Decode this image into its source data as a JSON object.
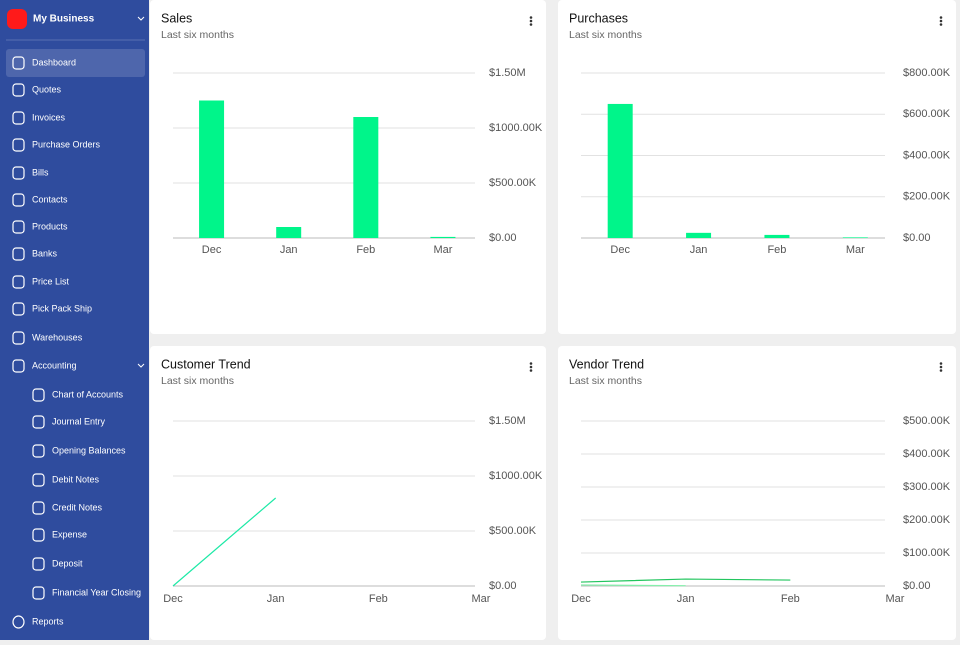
{
  "sidebar": {
    "brand": "My Business",
    "items": [
      "Dashboard",
      "Quotes",
      "Invoices",
      "Purchase Orders",
      "Bills",
      "Contacts",
      "Products",
      "Banks",
      "Price List",
      "Pick Pack Ship",
      "Warehouses",
      "Accounting"
    ],
    "sub_items": [
      "Chart of Accounts",
      "Journal Entry",
      "Opening Balances",
      "Debit Notes",
      "Credit Notes",
      "Expense",
      "Deposit",
      "Financial Year Closing"
    ],
    "last_item": "Reports"
  },
  "charts": [
    {
      "type": "bar",
      "title": "Sales",
      "subtitle": "Last six months",
      "categories": [
        "Dec",
        "Jan",
        "Feb",
        "Mar"
      ],
      "values": [
        1250000,
        100000,
        1100000,
        10000
      ],
      "color": "#00f58a",
      "ylim": [
        0,
        1500000
      ],
      "yticks": [
        {
          "value": 0,
          "label": "$0.00"
        },
        {
          "value": 500000,
          "label": "$500.00K"
        },
        {
          "value": 1000000,
          "label": "$1000.00K"
        },
        {
          "value": 1500000,
          "label": "$1.50M"
        }
      ],
      "grid": true
    },
    {
      "type": "bar",
      "title": "Purchases",
      "subtitle": "Last six months",
      "categories": [
        "Dec",
        "Jan",
        "Feb",
        "Mar"
      ],
      "values": [
        650000,
        25000,
        15000,
        3000
      ],
      "color": "#00f58a",
      "ylim": [
        0,
        800000
      ],
      "yticks": [
        {
          "value": 0,
          "label": "$0.00"
        },
        {
          "value": 200000,
          "label": "$200.00K"
        },
        {
          "value": 400000,
          "label": "$400.00K"
        },
        {
          "value": 600000,
          "label": "$600.00K"
        },
        {
          "value": 800000,
          "label": "$800.00K"
        }
      ],
      "grid": true
    },
    {
      "type": "line",
      "title": "Customer Trend",
      "subtitle": "Last six months",
      "categories": [
        "Dec",
        "Jan",
        "Feb",
        "Mar"
      ],
      "series": [
        {
          "color": "#1de9a6",
          "values": [
            0,
            800000,
            null,
            null
          ]
        }
      ],
      "ylim": [
        0,
        1500000
      ],
      "yticks": [
        {
          "value": 0,
          "label": "$0.00"
        },
        {
          "value": 500000,
          "label": "$500.00K"
        },
        {
          "value": 1000000,
          "label": "$1000.00K"
        },
        {
          "value": 1500000,
          "label": "$1.50M"
        }
      ],
      "grid": true
    },
    {
      "type": "line",
      "title": "Vendor Trend",
      "subtitle": "Last six months",
      "categories": [
        "Dec",
        "Jan",
        "Feb",
        "Mar"
      ],
      "series": [
        {
          "color": "#22c55e",
          "values": [
            12000,
            21000,
            18000,
            null
          ]
        },
        {
          "color": "#86efac",
          "values": [
            3000,
            1000,
            null,
            null
          ]
        }
      ],
      "ylim": [
        0,
        500000
      ],
      "yticks": [
        {
          "value": 0,
          "label": "$0.00"
        },
        {
          "value": 100000,
          "label": "$100.00K"
        },
        {
          "value": 200000,
          "label": "$200.00K"
        },
        {
          "value": 300000,
          "label": "$300.00K"
        },
        {
          "value": 400000,
          "label": "$400.00K"
        },
        {
          "value": 500000,
          "label": "$500.00K"
        }
      ],
      "grid": true
    }
  ]
}
